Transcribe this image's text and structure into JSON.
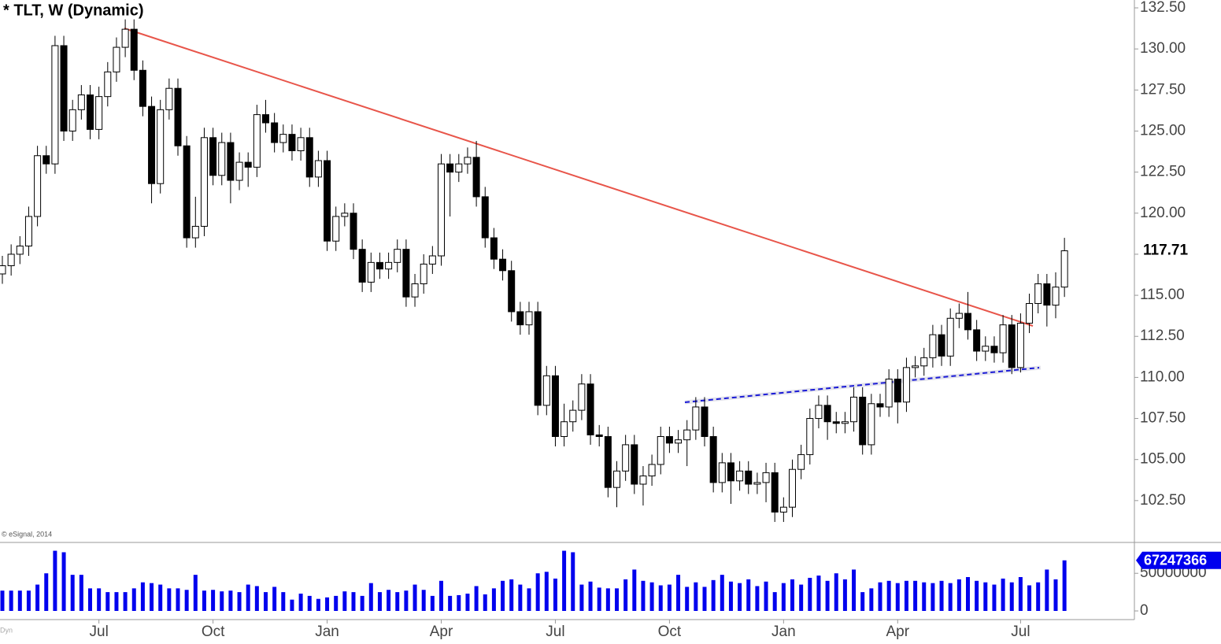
{
  "chart_data": {
    "type": "candlestick",
    "title": "* TLT, W (Dynamic)",
    "source": "© eSignal, 2014",
    "badge": "Dyn",
    "categories": [
      null,
      null,
      null,
      null,
      null,
      null,
      null,
      null,
      null,
      null,
      null,
      "Jul",
      null,
      null,
      null,
      null,
      null,
      null,
      null,
      null,
      null,
      null,
      null,
      null,
      "Oct",
      null,
      null,
      null,
      null,
      null,
      null,
      null,
      null,
      null,
      null,
      null,
      null,
      "Jan",
      null,
      null,
      null,
      null,
      null,
      null,
      null,
      null,
      null,
      null,
      null,
      null,
      "Apr",
      null,
      null,
      null,
      null,
      null,
      null,
      null,
      null,
      null,
      null,
      null,
      null,
      "Jul",
      null,
      null,
      null,
      null,
      null,
      null,
      null,
      null,
      null,
      null,
      null,
      null,
      "Oct",
      null,
      null,
      null,
      null,
      null,
      null,
      null,
      null,
      null,
      null,
      null,
      null,
      "Jan",
      null,
      null,
      null,
      null,
      null,
      null,
      null,
      null,
      null,
      null,
      null,
      null,
      "Apr",
      null,
      null,
      null,
      null,
      null,
      null,
      null,
      null,
      null,
      null,
      null,
      null,
      null,
      "Jul",
      null,
      null,
      null,
      null,
      null
    ],
    "open": [
      116.3,
      116.8,
      117.5,
      118,
      119.8,
      123.5,
      123,
      130.2,
      125,
      126.3,
      127.2,
      125.1,
      127.1,
      128.6,
      130.1,
      131.2,
      128.7,
      126.5,
      121.8,
      126.3,
      127.6,
      124.1,
      118.5,
      119.2,
      124.6,
      122.3,
      124.3,
      122,
      123.1,
      122.8,
      126,
      125.5,
      124.3,
      124.8,
      123.8,
      124.6,
      122.2,
      123.2,
      118.3,
      119.8,
      120,
      117.8,
      115.8,
      117,
      116.6,
      117,
      117.8,
      114.9,
      115.7,
      116.9,
      117.4,
      123,
      122.5,
      123,
      123.4,
      121,
      118.5,
      117.2,
      116.5,
      114,
      113.2,
      114,
      108.3,
      110.1,
      106.4,
      107.3,
      108,
      109.6,
      106.5,
      106.4,
      103.3,
      104.3,
      105.9,
      103.5,
      104,
      104.7,
      106.4,
      106,
      106.2,
      106.8,
      108.2,
      106.4,
      103.6,
      104.8,
      103.7,
      104.3,
      103.5,
      103.6,
      104.2,
      101.8,
      102.1,
      104.4,
      105.3,
      107.5,
      108.3,
      107.3,
      107.2,
      107.3,
      108.8,
      105.9,
      108.4,
      108.2,
      109.9,
      108.5,
      110.6,
      110.7,
      111.2,
      112.6,
      111.3,
      113.6,
      113.9,
      112.9,
      111.6,
      111.9,
      111.5,
      113.2,
      110.6,
      113.3,
      114.5,
      115.7,
      114.4,
      115.5
    ],
    "high": [
      117.4,
      118.1,
      118.6,
      120.4,
      124.1,
      124.1,
      130.8,
      130.8,
      126.9,
      127.8,
      127.8,
      127.7,
      129.2,
      130.7,
      131.8,
      131.8,
      129.3,
      127.1,
      126.9,
      128.2,
      128.2,
      124.7,
      121,
      125.2,
      125.2,
      124.9,
      124.9,
      123.7,
      123.7,
      126.6,
      126.9,
      126.1,
      125.4,
      125.4,
      125.2,
      125.2,
      123.8,
      123.8,
      120.4,
      120.6,
      120.6,
      118.4,
      117.6,
      117.6,
      117.6,
      118.4,
      118.4,
      116.3,
      117.5,
      118,
      123.6,
      123.6,
      123.6,
      124,
      124.4,
      121.6,
      119.1,
      117.8,
      117.1,
      114.6,
      114.6,
      114.6,
      110.7,
      110.7,
      108.4,
      108.6,
      110.2,
      110.2,
      107.1,
      107,
      104.9,
      106.5,
      106.5,
      104.6,
      105.3,
      107,
      107,
      106.8,
      107.4,
      108.8,
      108.8,
      107,
      105.4,
      105.4,
      104.9,
      104.9,
      104.2,
      104.8,
      104.8,
      102.7,
      105,
      105.9,
      108.1,
      108.9,
      108.9,
      107.9,
      107.9,
      109.4,
      109.4,
      109,
      109,
      110.5,
      110.5,
      111.2,
      111.3,
      111.8,
      113.2,
      113.2,
      114.2,
      114.5,
      115.2,
      113.5,
      112.5,
      112.5,
      113.8,
      113.8,
      113.9,
      115.1,
      116.3,
      116.3,
      116.4,
      118.5
    ],
    "low": [
      115.7,
      116.2,
      116.9,
      117.4,
      119.2,
      122.4,
      122.4,
      124.4,
      124.4,
      125.7,
      124.5,
      124.5,
      126.5,
      128,
      129.5,
      128.1,
      125.9,
      120.6,
      121.2,
      125.7,
      123.5,
      117.9,
      117.9,
      118.6,
      121.7,
      121.7,
      120.6,
      121.4,
      121.6,
      122.2,
      124.9,
      123.7,
      123.7,
      123.2,
      123.2,
      121.6,
      121.6,
      117.7,
      117.7,
      119.2,
      117.2,
      115.2,
      115.2,
      116,
      116,
      116.4,
      114.3,
      114.3,
      115.1,
      116.3,
      116.8,
      119.8,
      121.9,
      122.4,
      120.4,
      117.9,
      116.6,
      115.9,
      113.4,
      112.6,
      112.6,
      107.7,
      107.7,
      105.8,
      105.8,
      106.7,
      107.4,
      105.9,
      105.8,
      102.7,
      102.1,
      103.7,
      102.9,
      102.2,
      103.4,
      104.1,
      105.4,
      105.4,
      104.6,
      106.2,
      105.8,
      103,
      103,
      102.3,
      103.1,
      102.9,
      102.9,
      102.4,
      101.2,
      101.2,
      101.5,
      103.8,
      104.7,
      106.9,
      106.2,
      106.6,
      106.6,
      106.7,
      105.3,
      105.3,
      107.6,
      107.6,
      107.2,
      107.9,
      110,
      110.1,
      110.6,
      110.7,
      110.7,
      113,
      112.3,
      111,
      111,
      110.9,
      110.9,
      110.2,
      110.3,
      112.7,
      113.9,
      113.1,
      113.6,
      114.9
    ],
    "close": [
      116.8,
      117.5,
      118,
      119.8,
      123.5,
      123,
      130.2,
      125,
      126.3,
      127.2,
      125.1,
      127.1,
      128.6,
      130.1,
      131.2,
      128.7,
      126.5,
      121.8,
      126.3,
      127.6,
      124.1,
      118.5,
      119.2,
      124.6,
      122.3,
      124.3,
      122,
      123.1,
      122.8,
      126,
      125.5,
      124.3,
      124.8,
      123.8,
      124.6,
      122.2,
      123.2,
      118.3,
      119.8,
      120,
      117.8,
      115.8,
      117,
      116.6,
      117,
      117.8,
      114.9,
      115.7,
      116.9,
      117.4,
      123,
      122.5,
      123,
      123.4,
      121,
      118.5,
      117.2,
      116.5,
      114,
      113.2,
      114,
      108.3,
      110.1,
      106.4,
      107.3,
      108,
      109.6,
      106.5,
      106.4,
      103.3,
      104.3,
      105.9,
      103.5,
      104,
      104.7,
      106.4,
      106,
      106.2,
      106.8,
      108.2,
      106.4,
      103.6,
      104.8,
      103.7,
      104.3,
      103.5,
      103.6,
      104.2,
      101.8,
      102.1,
      104.4,
      105.3,
      107.5,
      108.3,
      107.3,
      107.2,
      107.3,
      108.8,
      105.9,
      108.4,
      108.2,
      109.9,
      108.5,
      110.6,
      110.7,
      111.2,
      112.6,
      111.3,
      113.6,
      113.9,
      112.9,
      111.6,
      111.9,
      111.5,
      113.2,
      110.6,
      113.3,
      114.5,
      115.7,
      114.4,
      115.5,
      117.71
    ],
    "volume": [
      27000000,
      27000000,
      27000000,
      27000000,
      35000000,
      50000000,
      80000000,
      78000000,
      48000000,
      48000000,
      30000000,
      30000000,
      25000000,
      25000000,
      25000000,
      30000000,
      38000000,
      37000000,
      35000000,
      30000000,
      30000000,
      28000000,
      48000000,
      27000000,
      28000000,
      26000000,
      27000000,
      25000000,
      35000000,
      33000000,
      25000000,
      32000000,
      25000000,
      15000000,
      23000000,
      20000000,
      16000000,
      18000000,
      20000000,
      26000000,
      25000000,
      20000000,
      37000000,
      25000000,
      28000000,
      25000000,
      27000000,
      35000000,
      28000000,
      20000000,
      40000000,
      20000000,
      21000000,
      23000000,
      33000000,
      22000000,
      30000000,
      40000000,
      42000000,
      35000000,
      30000000,
      50000000,
      52000000,
      43000000,
      80000000,
      78000000,
      35000000,
      39000000,
      31000000,
      30000000,
      30000000,
      42000000,
      55000000,
      40000000,
      38000000,
      34000000,
      35000000,
      48000000,
      32000000,
      38000000,
      32000000,
      41000000,
      48000000,
      39000000,
      37000000,
      42000000,
      33000000,
      39000000,
      25000000,
      37000000,
      42000000,
      35000000,
      44000000,
      47000000,
      40000000,
      50000000,
      42000000,
      55000000,
      25000000,
      30000000,
      38000000,
      40000000,
      37000000,
      40000000,
      40000000,
      38000000,
      37000000,
      40000000,
      37000000,
      42000000,
      45000000,
      40000000,
      38000000,
      35000000,
      43000000,
      38000000,
      45000000,
      34000000,
      38000000,
      55000000,
      42000000,
      67247366
    ],
    "ylim": [
      100,
      132.5
    ],
    "yticks": [
      {
        "value": 102.5,
        "label": "102.50"
      },
      {
        "value": 105,
        "label": "105.00"
      },
      {
        "value": 107.5,
        "label": "107.50"
      },
      {
        "value": 110,
        "label": "110.00"
      },
      {
        "value": 112.5,
        "label": "112.50"
      },
      {
        "value": 115,
        "label": "115.00"
      },
      {
        "value": 117.5,
        "label": "117.50"
      },
      {
        "value": 120,
        "label": "120.00"
      },
      {
        "value": 122.5,
        "label": "122.50"
      },
      {
        "value": 125,
        "label": "125.00"
      },
      {
        "value": 127.5,
        "label": "127.50"
      },
      {
        "value": 130,
        "label": "130.00"
      },
      {
        "value": 132.5,
        "label": "132.50"
      }
    ],
    "volume_ylim": [
      0,
      90000000
    ],
    "volume_yticks": [
      0,
      50000000
    ],
    "up_color": "#ffffff",
    "down_color": "#000000",
    "volume_color": "#0000ee"
  }
}
